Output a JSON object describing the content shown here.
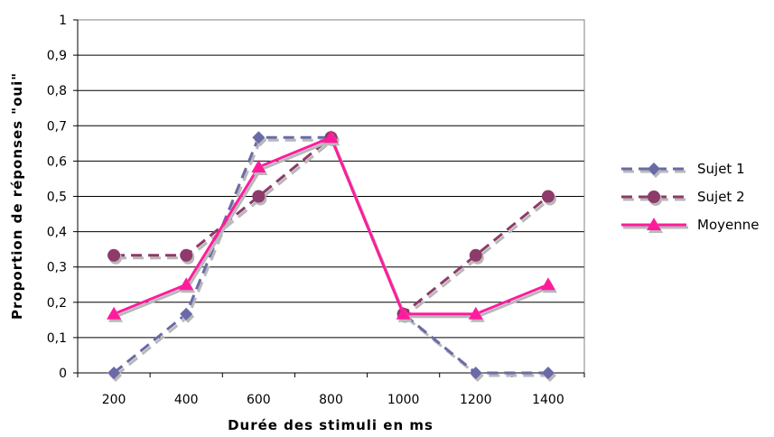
{
  "chart_data": {
    "type": "line",
    "xlabel": "Durée des stimuli en ms",
    "ylabel": "Proportion de réponses \"oui\"",
    "categories": [
      "200",
      "400",
      "600",
      "800",
      "1000",
      "1200",
      "1400"
    ],
    "ylim": [
      0,
      1
    ],
    "yticks": [
      "0",
      "0,1",
      "0,2",
      "0,3",
      "0,4",
      "0,5",
      "0,6",
      "0,7",
      "0,8",
      "0,9",
      "1"
    ],
    "grid": true,
    "legend_position": "right",
    "series": [
      {
        "name": "Sujet 1",
        "values": [
          0,
          0.167,
          0.667,
          0.667,
          0.167,
          0,
          0
        ],
        "color": "#6a6aa8",
        "dash": true,
        "marker": "diamond"
      },
      {
        "name": "Sujet 2",
        "values": [
          0.333,
          0.333,
          0.5,
          0.667,
          0.167,
          0.333,
          0.5
        ],
        "color": "#8e3a6a",
        "dash": true,
        "marker": "circle"
      },
      {
        "name": "Moyenne",
        "values": [
          0.167,
          0.25,
          0.583,
          0.667,
          0.167,
          0.167,
          0.25
        ],
        "color": "#ff1c9c",
        "dash": false,
        "marker": "triangle"
      }
    ]
  }
}
